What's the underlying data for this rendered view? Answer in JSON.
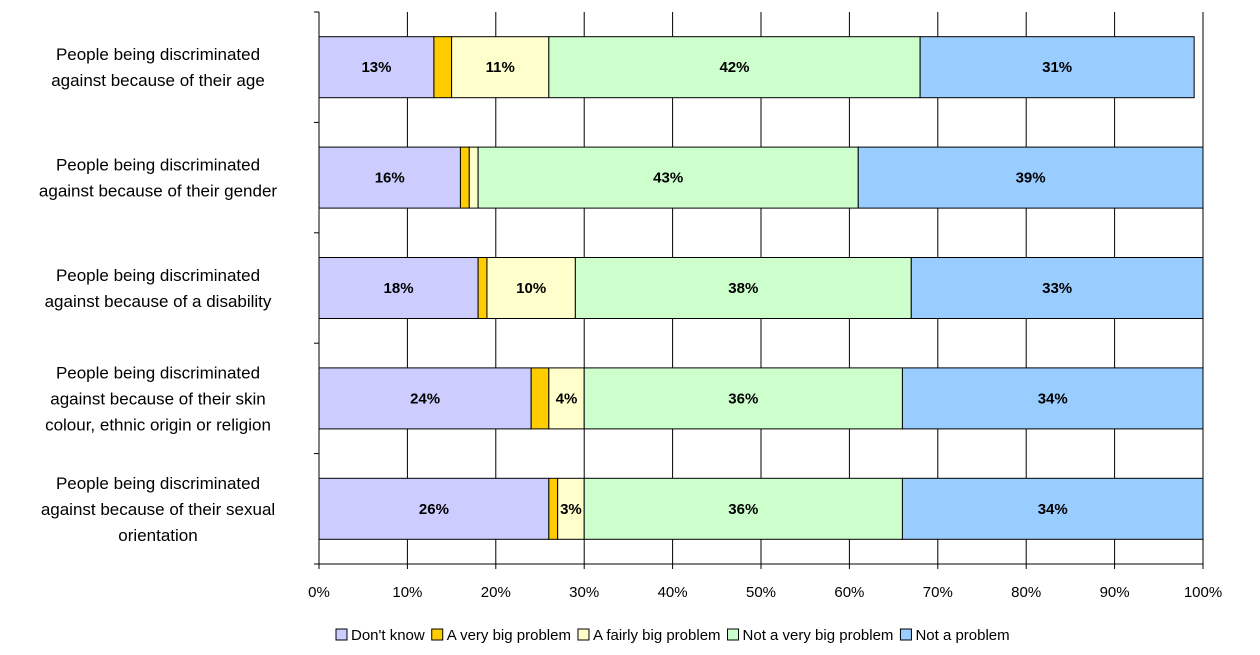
{
  "chart_data": {
    "type": "bar",
    "orientation": "horizontal",
    "stacked": "100%",
    "categories": [
      [
        "People being discriminated",
        "against because of their age"
      ],
      [
        "People being discriminated",
        "against because of their gender"
      ],
      [
        "People being discriminated",
        "against because of a disability"
      ],
      [
        "People being discriminated",
        "against because of their skin",
        "colour, ethnic origin or religion"
      ],
      [
        "People being discriminated",
        "against because of their sexual",
        "orientation"
      ]
    ],
    "series": [
      {
        "name": "Don't know",
        "color": "#ccccff",
        "values": [
          13,
          16,
          18,
          24,
          26
        ],
        "labels": [
          "13%",
          "16%",
          "18%",
          "24%",
          "26%"
        ]
      },
      {
        "name": "A very big problem",
        "color": "#ffcc00",
        "values": [
          2,
          1,
          1,
          2,
          1
        ],
        "labels": [
          "",
          "",
          "",
          "",
          ""
        ]
      },
      {
        "name": "A fairly big problem",
        "color": "#ffffcc",
        "values": [
          11,
          1,
          10,
          4,
          3
        ],
        "labels": [
          "11%",
          "",
          "10%",
          "4%",
          "3%"
        ]
      },
      {
        "name": "Not a very big problem",
        "color": "#ccffcc",
        "values": [
          42,
          43,
          38,
          36,
          36
        ],
        "labels": [
          "42%",
          "43%",
          "38%",
          "36%",
          "36%"
        ]
      },
      {
        "name": "Not a problem",
        "color": "#99ccff",
        "values": [
          31,
          39,
          33,
          34,
          34
        ],
        "labels": [
          "31%",
          "39%",
          "33%",
          "34%",
          "34%"
        ]
      }
    ],
    "xlim": [
      0,
      100
    ],
    "xticks": [
      "0%",
      "10%",
      "20%",
      "30%",
      "40%",
      "50%",
      "60%",
      "70%",
      "80%",
      "90%",
      "100%"
    ],
    "grid": true,
    "legend": "bottom"
  }
}
